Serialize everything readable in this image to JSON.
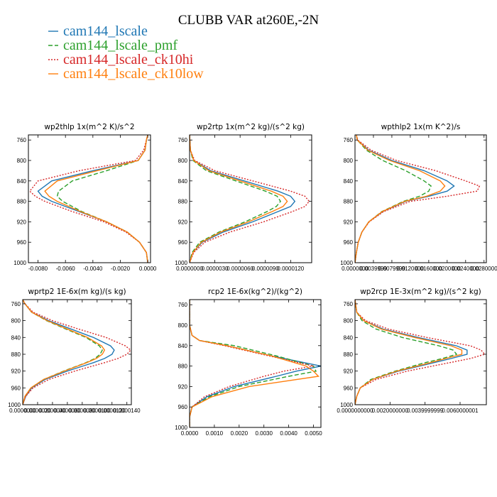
{
  "figure": {
    "title": "CLUBB VAR at260E,-2N",
    "legend": [
      {
        "label": "cam144_lscale",
        "color": "#1f77b4",
        "dash": "solid"
      },
      {
        "label": "cam144_lscale_pmf",
        "color": "#2ca02c",
        "dash": "dashed"
      },
      {
        "label": "cam144_lscale_ck10hi",
        "color": "#d62728",
        "dash": "dotted"
      },
      {
        "label": "cam144_lscale_ck10low",
        "color": "#ff7f0e",
        "dash": "solid"
      }
    ]
  },
  "chart_data": [
    {
      "type": "line",
      "title": "wp2thlp  1x(m^2 K)/s^2",
      "xlim": [
        -0.0087,
        0.0002
      ],
      "ylim": [
        1000,
        750
      ],
      "xticks": [
        -0.008,
        -0.006,
        -0.004,
        -0.002,
        0.0
      ],
      "xtick_labels": [
        "-0.0080",
        "-0.0060",
        "-0.0040",
        "-0.0020",
        "0.0000"
      ],
      "yticks": [
        760,
        800,
        840,
        880,
        920,
        960,
        1000
      ],
      "y": [
        750,
        760,
        780,
        800,
        820,
        840,
        860,
        870,
        880,
        900,
        920,
        940,
        960,
        980,
        1000
      ],
      "series": [
        {
          "name": "cam144_lscale",
          "values": [
            0,
            -0.0001,
            -0.0002,
            -0.0007,
            -0.004,
            -0.007,
            -0.008,
            -0.0077,
            -0.007,
            -0.005,
            -0.003,
            -0.0015,
            -0.0006,
            -0.0001,
            0
          ]
        },
        {
          "name": "cam144_lscale_pmf",
          "values": [
            0,
            -0.0001,
            -0.0002,
            -0.0007,
            -0.003,
            -0.0055,
            -0.0065,
            -0.0066,
            -0.0062,
            -0.0048,
            -0.003,
            -0.0015,
            -0.0006,
            -0.0001,
            0
          ]
        },
        {
          "name": "cam144_lscale_ck10hi",
          "values": [
            0,
            -0.0001,
            -0.0003,
            -0.0009,
            -0.005,
            -0.008,
            -0.0086,
            -0.0082,
            -0.0075,
            -0.0055,
            -0.0032,
            -0.0016,
            -0.0006,
            -0.0001,
            0
          ]
        },
        {
          "name": "cam144_lscale_ck10low",
          "values": [
            0,
            -0.0001,
            -0.0002,
            -0.0007,
            -0.0037,
            -0.0066,
            -0.0075,
            -0.0072,
            -0.0066,
            -0.0049,
            -0.003,
            -0.0015,
            -0.0006,
            -0.0001,
            0
          ]
        }
      ]
    },
    {
      "type": "line",
      "title": "wp2rtp  1x(m^2 kg)/(s^2 kg)",
      "xlim": [
        0,
        1.45e-05
      ],
      "ylim": [
        1000,
        750
      ],
      "xticks": [
        0,
        3e-06,
        6e-06,
        9e-06,
        1.2e-05
      ],
      "xtick_labels": [
        "0.0000000",
        "0.0000030",
        "0.0000060",
        "0.0000090",
        "0.0000120"
      ],
      "yticks": [
        760,
        800,
        840,
        880,
        920,
        960,
        1000
      ],
      "y": [
        750,
        780,
        800,
        820,
        840,
        860,
        870,
        880,
        890,
        900,
        920,
        940,
        960,
        980,
        1000
      ],
      "series": [
        {
          "name": "cam144_lscale",
          "values": [
            0,
            1e-07,
            5e-07,
            2.5e-06,
            6.5e-06,
            1.05e-05,
            1.2e-05,
            1.25e-05,
            1.2e-05,
            1.05e-05,
            7.5e-06,
            4e-06,
            1.5e-06,
            4e-07,
            0
          ]
        },
        {
          "name": "cam144_lscale_pmf",
          "values": [
            0,
            1e-07,
            4e-07,
            2e-06,
            5.5e-06,
            9e-06,
            1.04e-05,
            1.08e-05,
            1.03e-05,
            9.2e-06,
            6.6e-06,
            3.5e-06,
            1.2e-06,
            3e-07,
            0
          ]
        },
        {
          "name": "cam144_lscale_ck10hi",
          "values": [
            0,
            1e-07,
            6e-07,
            3e-06,
            7.5e-06,
            1.2e-05,
            1.37e-05,
            1.42e-05,
            1.37e-05,
            1.22e-05,
            8.8e-06,
            4.8e-06,
            1.8e-06,
            5e-07,
            0
          ]
        },
        {
          "name": "cam144_lscale_ck10low",
          "values": [
            0,
            1e-07,
            5e-07,
            2.3e-06,
            6e-06,
            9.7e-06,
            1.11e-05,
            1.16e-05,
            1.11e-05,
            9.8e-06,
            7e-06,
            3.7e-06,
            1.4e-06,
            4e-07,
            0
          ]
        }
      ]
    },
    {
      "type": "line",
      "title": "wpthlp2  1x(m K^2)/s",
      "xlim": [
        0,
        0.0285
      ],
      "ylim": [
        1000,
        750
      ],
      "xticks": [
        0,
        0.004,
        0.008,
        0.012,
        0.016,
        0.02,
        0.024,
        0.028
      ],
      "xtick_labels": [
        "0.0000000",
        "0.0039999",
        "0.0079999",
        "0.0120000",
        "0.0160000",
        "0.0200000",
        "0.0240000",
        "0.0280000"
      ],
      "yticks": [
        760,
        800,
        840,
        880,
        920,
        960,
        1000
      ],
      "y": [
        750,
        760,
        780,
        800,
        820,
        840,
        850,
        860,
        870,
        880,
        900,
        920,
        940,
        960,
        980,
        1000
      ],
      "series": [
        {
          "name": "cam144_lscale",
          "values": [
            0.0003,
            0.0005,
            0.003,
            0.008,
            0.015,
            0.02,
            0.0215,
            0.02,
            0.016,
            0.011,
            0.006,
            0.003,
            0.0015,
            0.0007,
            0.0003,
            0
          ]
        },
        {
          "name": "cam144_lscale_pmf",
          "values": [
            0.0003,
            0.0005,
            0.0025,
            0.006,
            0.011,
            0.015,
            0.0165,
            0.016,
            0.014,
            0.0105,
            0.0058,
            0.003,
            0.0015,
            0.0007,
            0.0003,
            0
          ]
        },
        {
          "name": "cam144_lscale_ck10hi",
          "values": [
            0.0003,
            0.0006,
            0.0035,
            0.009,
            0.0175,
            0.024,
            0.027,
            0.0265,
            0.02,
            0.012,
            0.0062,
            0.0031,
            0.0015,
            0.0007,
            0.0003,
            0
          ]
        },
        {
          "name": "cam144_lscale_ck10low",
          "values": [
            0.0003,
            0.0005,
            0.0028,
            0.0075,
            0.014,
            0.0185,
            0.0195,
            0.0185,
            0.0155,
            0.0108,
            0.0059,
            0.003,
            0.0015,
            0.0007,
            0.0003,
            0
          ]
        }
      ]
    },
    {
      "type": "line",
      "title": "wprtp2  1E-6x(m kg)/(s kg)",
      "xlim": [
        0,
        1.46e-05
      ],
      "ylim": [
        1000,
        750
      ],
      "xticks": [
        0,
        2e-06,
        4e-06,
        6e-06,
        8e-06,
        1e-05,
        1.2e-05,
        1.4e-05
      ],
      "xtick_labels": [
        "0.0000000",
        "0.0000020",
        "0.0000040",
        "0.0000060",
        "0.0000080",
        "0.0000100",
        "0.0000120",
        "0.0000140"
      ],
      "yticks": [
        760,
        800,
        840,
        880,
        920,
        960,
        1000
      ],
      "y": [
        750,
        760,
        780,
        800,
        820,
        840,
        860,
        870,
        880,
        890,
        900,
        920,
        940,
        960,
        980,
        1000
      ],
      "series": [
        {
          "name": "cam144_lscale",
          "values": [
            0,
            3e-07,
            1.2e-06,
            3.5e-06,
            6.5e-06,
            9.5e-06,
            1.18e-05,
            1.23e-05,
            1.2e-05,
            1.1e-05,
            9.5e-06,
            6e-06,
            3e-06,
            1.2e-06,
            4e-07,
            0
          ]
        },
        {
          "name": "cam144_lscale_pmf",
          "values": [
            0,
            3e-07,
            1.2e-06,
            3.2e-06,
            5.8e-06,
            8.5e-06,
            1.03e-05,
            1.07e-05,
            1.04e-05,
            9.7e-06,
            8.5e-06,
            5.5e-06,
            2.8e-06,
            1.1e-06,
            3e-07,
            0
          ]
        },
        {
          "name": "cam144_lscale_ck10hi",
          "values": [
            0,
            3e-07,
            1.4e-06,
            4e-06,
            7.5e-06,
            1.12e-05,
            1.38e-05,
            1.45e-05,
            1.4e-05,
            1.28e-05,
            1.1e-05,
            7e-06,
            3.5e-06,
            1.4e-06,
            4e-07,
            0
          ]
        },
        {
          "name": "cam144_lscale_ck10low",
          "values": [
            0,
            3e-07,
            1.2e-06,
            3.3e-06,
            6e-06,
            8.7e-06,
            1.06e-05,
            1.1e-05,
            1.07e-05,
            9.9e-06,
            8.6e-06,
            5.6e-06,
            2.8e-06,
            1.1e-06,
            3e-07,
            0
          ]
        }
      ]
    },
    {
      "type": "line",
      "title": "rcp2  1E-6x(kg^2)/(kg^2)",
      "xlim": [
        0,
        0.0053
      ],
      "ylim": [
        1000,
        750
      ],
      "xticks": [
        0,
        0.001,
        0.002,
        0.003,
        0.004,
        0.005
      ],
      "xtick_labels": [
        "0.0000",
        "0.0010",
        "0.0020",
        "0.0030",
        "0.0040",
        "0.0050"
      ],
      "yticks": [
        760,
        800,
        840,
        880,
        920,
        960,
        1000
      ],
      "y": [
        750,
        800,
        820,
        830,
        840,
        860,
        880,
        890,
        900,
        920,
        940,
        960,
        980,
        1000
      ],
      "series": [
        {
          "name": "cam144_lscale",
          "values": [
            0,
            0,
            0.0001,
            0.0004,
            0.0015,
            0.0033,
            0.0053,
            0.0043,
            0.0035,
            0.0018,
            0.0007,
            0.0001,
            0,
            0
          ]
        },
        {
          "name": "cam144_lscale_pmf",
          "values": [
            0,
            0,
            0.0001,
            0.0004,
            0.0018,
            0.0035,
            0.005,
            0.0051,
            0.004,
            0.002,
            0.0008,
            0.0001,
            0,
            0
          ]
        },
        {
          "name": "cam144_lscale_ck10hi",
          "values": [
            0,
            0,
            0.0001,
            0.0004,
            0.0014,
            0.0032,
            0.005,
            0.0038,
            0.003,
            0.0016,
            0.0006,
            0.0001,
            0,
            0
          ]
        },
        {
          "name": "cam144_lscale_ck10low",
          "values": [
            0,
            0,
            0.0001,
            0.0004,
            0.0015,
            0.0033,
            0.0047,
            0.005,
            0.0052,
            0.0024,
            0.0009,
            0.0001,
            0,
            0
          ]
        }
      ]
    },
    {
      "type": "line",
      "title": "wp2rcp  1E-3x(m^2 kg)/(s^2 kg)",
      "xlim": [
        0,
        0.0075
      ],
      "ylim": [
        1000,
        750
      ],
      "xticks": [
        0,
        0.002,
        0.004,
        0.006
      ],
      "xtick_labels": [
        "0.0000000000",
        "0.0020000000",
        "0.0039999999",
        "0.0060000001"
      ],
      "yticks": [
        760,
        800,
        840,
        880,
        920,
        960,
        1000
      ],
      "y": [
        750,
        780,
        800,
        820,
        840,
        860,
        870,
        880,
        890,
        900,
        920,
        940,
        960,
        980,
        1000
      ],
      "series": [
        {
          "name": "cam144_lscale",
          "values": [
            0,
            0.0001,
            0.0005,
            0.0016,
            0.0036,
            0.0058,
            0.0064,
            0.0064,
            0.0055,
            0.0045,
            0.0025,
            0.001,
            0.0003,
            0.0001,
            0
          ]
        },
        {
          "name": "cam144_lscale_pmf",
          "values": [
            0,
            0.0001,
            0.0004,
            0.0012,
            0.0027,
            0.0048,
            0.0056,
            0.0058,
            0.005,
            0.004,
            0.0023,
            0.0009,
            0.0003,
            0.0001,
            0
          ]
        },
        {
          "name": "cam144_lscale_ck10hi",
          "values": [
            0,
            0.0001,
            0.0006,
            0.0019,
            0.0041,
            0.0066,
            0.0072,
            0.0074,
            0.0066,
            0.0054,
            0.003,
            0.0012,
            0.0003,
            0.0001,
            0
          ]
        },
        {
          "name": "cam144_lscale_ck10low",
          "values": [
            0,
            0.0001,
            0.0005,
            0.0015,
            0.0034,
            0.0055,
            0.0061,
            0.0061,
            0.0052,
            0.0043,
            0.0024,
            0.001,
            0.0003,
            0.0001,
            0
          ]
        }
      ]
    }
  ]
}
